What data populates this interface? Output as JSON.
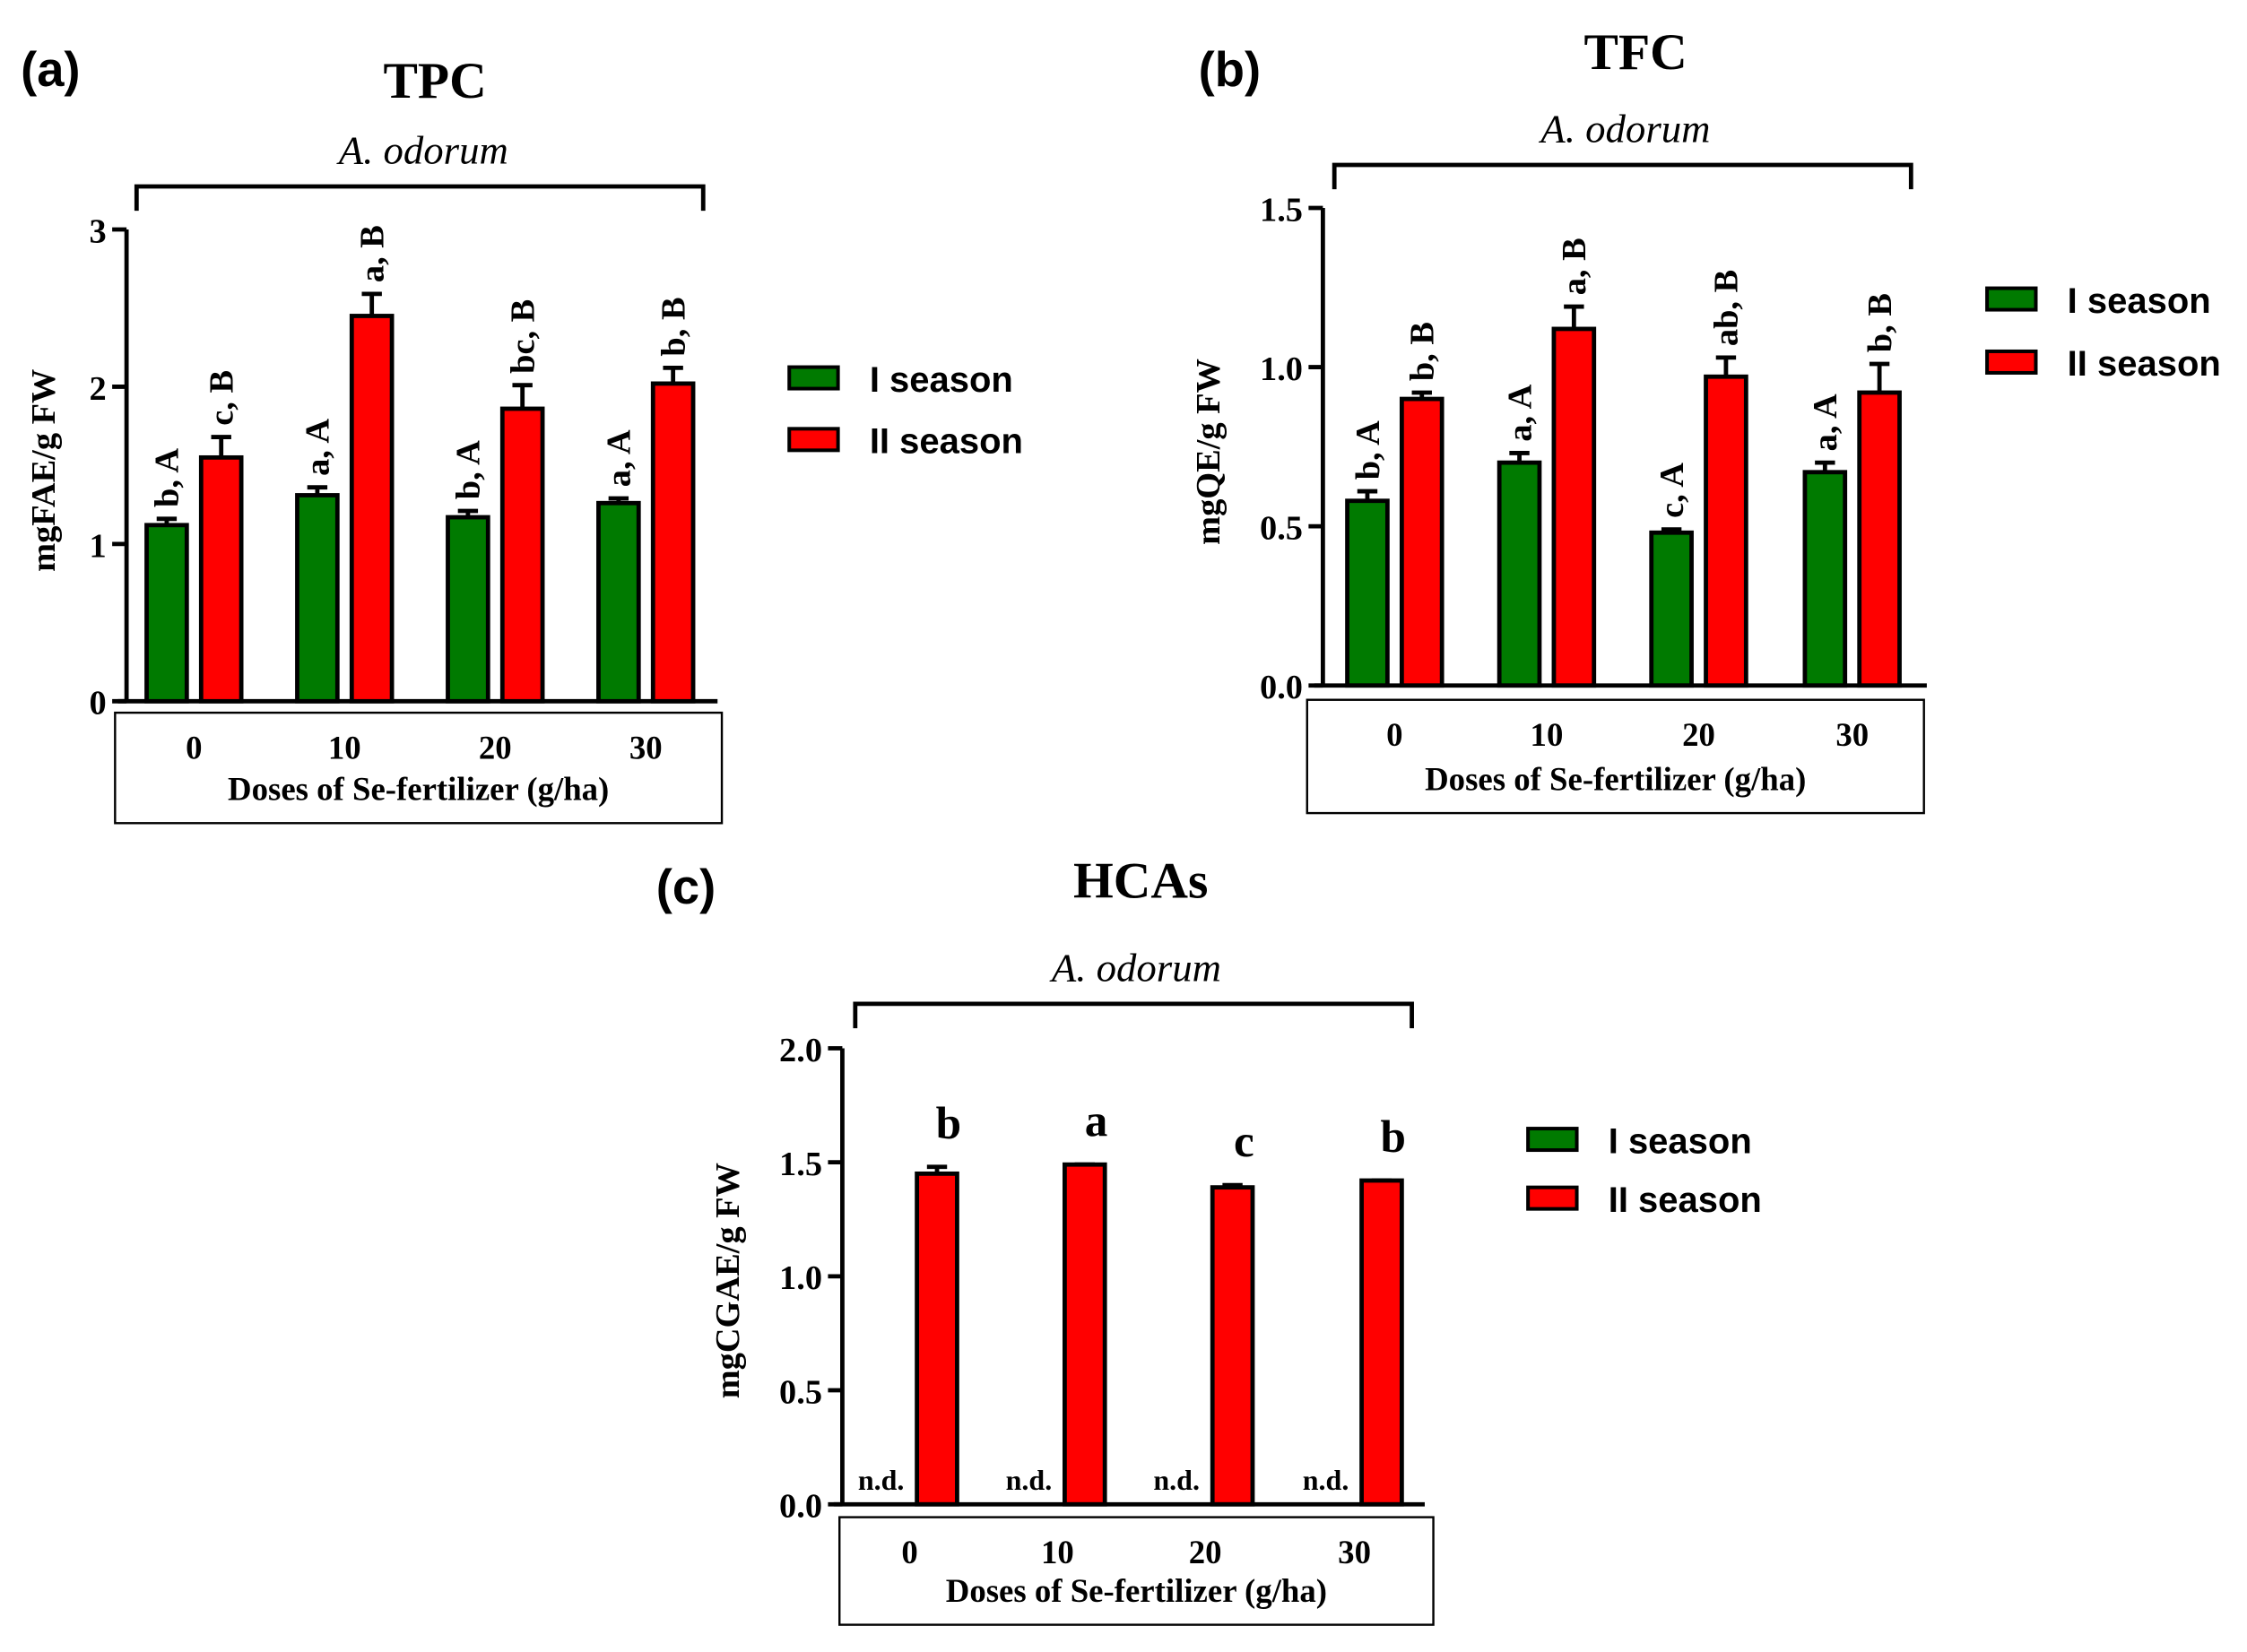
{
  "colors": {
    "season1": "#007a00",
    "season2": "#ff0000"
  },
  "chart_data": [
    {
      "type": "bar",
      "panel": "(a)",
      "title": "TPC",
      "subtitle": "A. odorum",
      "xlabel": "Doses of Se-fertilizer (g/ha)",
      "ylabel": "mgFAE/g FW",
      "ylim": [
        0,
        3
      ],
      "yticks": [
        "0",
        "1",
        "2",
        "3"
      ],
      "categories": [
        "0",
        "10",
        "20",
        "30"
      ],
      "legend": [
        "I  season",
        "II  season"
      ],
      "series": [
        {
          "name": "I season",
          "values": [
            1.12,
            1.31,
            1.17,
            1.26
          ],
          "errors": [
            0.04,
            0.05,
            0.04,
            0.03
          ],
          "labels": [
            "b, A",
            "a, A",
            "b, A",
            "a, A"
          ]
        },
        {
          "name": "II season",
          "values": [
            1.55,
            2.45,
            1.86,
            2.02
          ],
          "errors": [
            0.13,
            0.14,
            0.15,
            0.1
          ],
          "labels": [
            "c, B",
            "a, B",
            "bc, B",
            "b, B"
          ]
        }
      ]
    },
    {
      "type": "bar",
      "panel": "(b)",
      "title": "TFC",
      "subtitle": "A. odorum",
      "xlabel": "Doses of Se-fertilizer (g/ha)",
      "ylabel": "mgQE/g FW",
      "ylim": [
        0,
        1.5
      ],
      "yticks": [
        "0.0",
        "0.5",
        "1.0",
        "1.5"
      ],
      "categories": [
        "0",
        "10",
        "20",
        "30"
      ],
      "legend": [
        "I season",
        "II season"
      ],
      "series": [
        {
          "name": "I season",
          "values": [
            0.58,
            0.7,
            0.48,
            0.67
          ],
          "errors": [
            0.03,
            0.03,
            0.01,
            0.03
          ],
          "labels": [
            "b, A",
            "a, A",
            "c, A",
            "a, A"
          ]
        },
        {
          "name": "II season",
          "values": [
            0.9,
            1.12,
            0.97,
            0.92
          ],
          "errors": [
            0.02,
            0.07,
            0.06,
            0.09
          ],
          "labels": [
            "b, B",
            "a, B",
            "ab, B",
            "b, B"
          ]
        }
      ]
    },
    {
      "type": "bar",
      "panel": "(c)",
      "title": "HCAs",
      "subtitle": "A. odorum",
      "xlabel": "Doses of Se-fertilizer (g/ha)",
      "ylabel": "mgCGAE/g FW",
      "ylim": [
        0,
        2.0
      ],
      "yticks": [
        "0.0",
        "0.5",
        "1.0",
        "1.5",
        "2.0"
      ],
      "categories": [
        "0",
        "10",
        "20",
        "30"
      ],
      "legend": [
        "I  season",
        "II  season"
      ],
      "series": [
        {
          "name": "I season",
          "values": [
            null,
            null,
            null,
            null
          ],
          "errors": [
            0,
            0,
            0,
            0
          ],
          "labels": [
            "n.d.",
            "n.d.",
            "n.d.",
            "n.d."
          ]
        },
        {
          "name": "II season",
          "values": [
            1.45,
            1.49,
            1.39,
            1.42
          ],
          "errors": [
            0.03,
            0.0,
            0.01,
            0.0
          ],
          "labels": [
            "b",
            "a",
            "c",
            "b"
          ]
        }
      ]
    }
  ]
}
